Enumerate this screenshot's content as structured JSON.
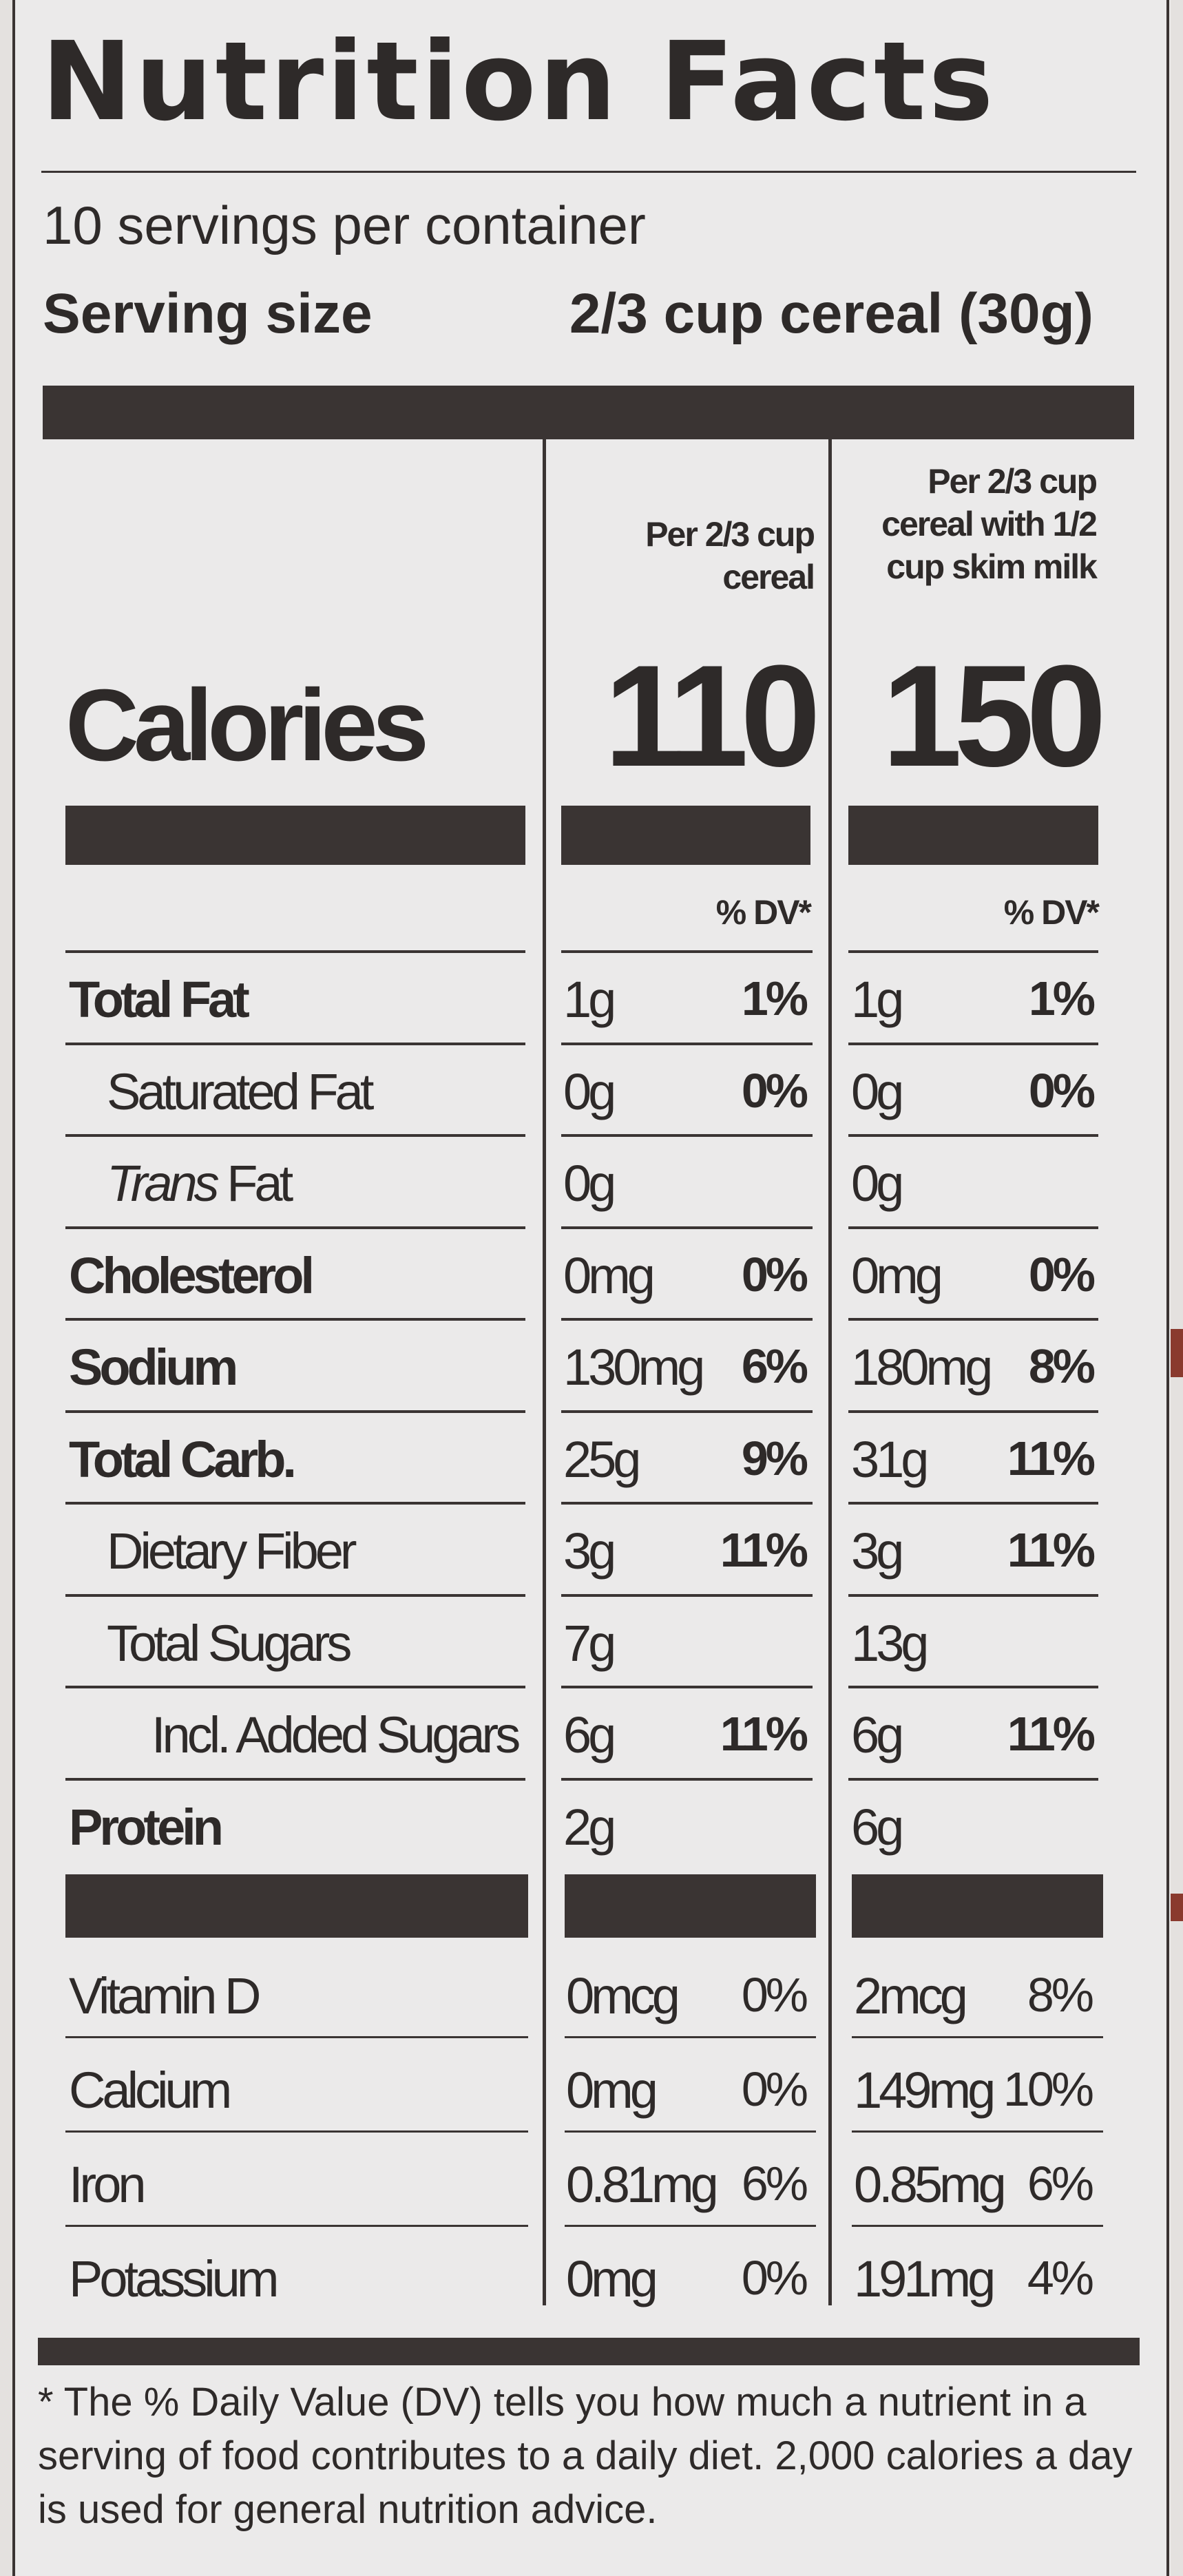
{
  "title": "Nutrition Facts",
  "servings_per_container": "10 servings per container",
  "serving_size": {
    "label": "Serving size",
    "value": "2/3 cup cereal (30g)"
  },
  "columns": {
    "col1_header": [
      "Per 2/3 cup",
      "cereal"
    ],
    "col2_header": [
      "Per 2/3 cup",
      "cereal with 1/2",
      "cup skim milk"
    ]
  },
  "calories": {
    "label": "Calories",
    "col1": "110",
    "col2": "150"
  },
  "dv_header": "% DV*",
  "nutrients": [
    {
      "name": "Total Fat",
      "c1_amt": "1g",
      "c1_dv": "1%",
      "c2_amt": "1g",
      "c2_dv": "1%"
    },
    {
      "name": "Saturated Fat",
      "c1_amt": "0g",
      "c1_dv": "0%",
      "c2_amt": "0g",
      "c2_dv": "0%"
    },
    {
      "name": "Trans",
      "name_suffix": " Fat",
      "c1_amt": "0g",
      "c1_dv": "",
      "c2_amt": "0g",
      "c2_dv": ""
    },
    {
      "name": "Cholesterol",
      "c1_amt": "0mg",
      "c1_dv": "0%",
      "c2_amt": "0mg",
      "c2_dv": "0%"
    },
    {
      "name": "Sodium",
      "c1_amt": "130mg",
      "c1_dv": "6%",
      "c2_amt": "180mg",
      "c2_dv": "8%"
    },
    {
      "name": "Total Carb.",
      "c1_amt": "25g",
      "c1_dv": "9%",
      "c2_amt": "31g",
      "c2_dv": "11%"
    },
    {
      "name": "Dietary Fiber",
      "c1_amt": "3g",
      "c1_dv": "11%",
      "c2_amt": "3g",
      "c2_dv": "11%"
    },
    {
      "name": "Total Sugars",
      "c1_amt": "7g",
      "c1_dv": "",
      "c2_amt": "13g",
      "c2_dv": ""
    },
    {
      "name": "Incl. Added Sugars",
      "c1_amt": "6g",
      "c1_dv": "11%",
      "c2_amt": "6g",
      "c2_dv": "11%"
    },
    {
      "name": "Protein",
      "c1_amt": "2g",
      "c1_dv": "",
      "c2_amt": "6g",
      "c2_dv": ""
    }
  ],
  "vitamins": [
    {
      "name": "Vitamin D",
      "c1_amt": "0mcg",
      "c1_dv": "0%",
      "c2_amt": "2mcg",
      "c2_dv": "8%"
    },
    {
      "name": "Calcium",
      "c1_amt": "0mg",
      "c1_dv": "0%",
      "c2_amt": "149mg",
      "c2_dv": "10%"
    },
    {
      "name": "Iron",
      "c1_amt": "0.81mg",
      "c1_dv": "6%",
      "c2_amt": "0.85mg",
      "c2_dv": "6%"
    },
    {
      "name": "Potassium",
      "c1_amt": "0mg",
      "c1_dv": "0%",
      "c2_amt": "191mg",
      "c2_dv": "4%"
    }
  ],
  "footnote": [
    "* The % Daily Value (DV) tells you how much a nutrient in a",
    "serving of food contributes to a daily diet. 2,000 calories a day",
    "is used for general nutrition advice."
  ]
}
